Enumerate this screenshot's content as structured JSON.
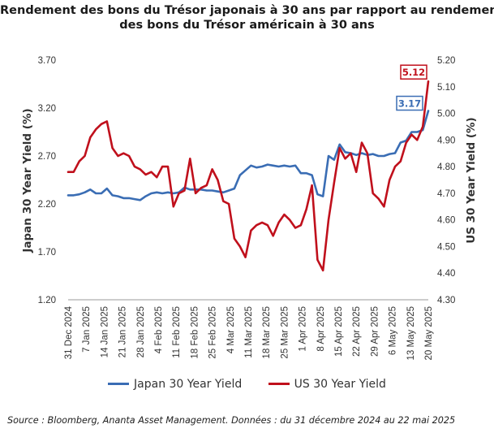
{
  "title_line1": "Rendement des bons du Trésor japonais à 30 ans par rapport au rendement",
  "title_line2": "des bons du Trésor américain à 30 ans",
  "source": "Source : Bloomberg, Ananta Asset Management. Données : du 31 décembre 2024 au 22 mai 2025",
  "colors": {
    "japan": "#3a6db4",
    "us": "#c0101c",
    "axis": "#999999"
  },
  "chart_data": {
    "type": "line",
    "x_categories": [
      "31 Dec 2024",
      "7 Jan 2025",
      "14 Jan 2025",
      "21 Jan 2025",
      "28 Jan 2025",
      "4 Feb 2025",
      "11 Feb 2025",
      "18 Feb 2025",
      "25 Feb 2025",
      "4 Mar 2025",
      "11 Mar 2025",
      "18 Mar 2025",
      "25 Mar 2025",
      "1 Apr 2025",
      "8 Apr 2025",
      "15 Apr 2025",
      "22 Apr 2025",
      "29 Apr 2025",
      "6 May 2025",
      "13 May 2025",
      "20 May 2025"
    ],
    "left_axis": {
      "label": "Japan 30 Year Yield (%)",
      "ticks": [
        "3.70",
        "3.20",
        "2.70",
        "2.20",
        "1.70",
        "1.20"
      ],
      "range": [
        1.2,
        3.7
      ]
    },
    "right_axis": {
      "label": "US 30 Year Yield (%)",
      "ticks": [
        "5.20",
        "5.10",
        "5.00",
        "4.90",
        "4.80",
        "4.70",
        "4.60",
        "4.50",
        "4.40",
        "4.30"
      ],
      "range": [
        4.3,
        5.2
      ]
    },
    "series": [
      {
        "name": "Japan 30 Year Yield",
        "axis": "left",
        "end_label": "3.17",
        "points": [
          [
            0,
            2.29
          ],
          [
            1,
            2.29
          ],
          [
            2,
            2.3
          ],
          [
            3,
            2.32
          ],
          [
            4,
            2.35
          ],
          [
            5,
            2.31
          ],
          [
            6,
            2.31
          ],
          [
            7,
            2.36
          ],
          [
            8,
            2.29
          ],
          [
            9,
            2.28
          ],
          [
            10,
            2.26
          ],
          [
            11,
            2.26
          ],
          [
            12,
            2.25
          ],
          [
            13,
            2.24
          ],
          [
            14,
            2.28
          ],
          [
            15,
            2.31
          ],
          [
            16,
            2.32
          ],
          [
            17,
            2.31
          ],
          [
            18,
            2.32
          ],
          [
            19,
            2.31
          ],
          [
            20,
            2.32
          ],
          [
            21,
            2.37
          ],
          [
            22,
            2.35
          ],
          [
            23,
            2.35
          ],
          [
            24,
            2.35
          ],
          [
            25,
            2.34
          ],
          [
            26,
            2.34
          ],
          [
            27,
            2.33
          ],
          [
            28,
            2.32
          ],
          [
            29,
            2.34
          ],
          [
            30,
            2.36
          ],
          [
            31,
            2.5
          ],
          [
            32,
            2.55
          ],
          [
            33,
            2.6
          ],
          [
            34,
            2.58
          ],
          [
            35,
            2.59
          ],
          [
            36,
            2.61
          ],
          [
            37,
            2.6
          ],
          [
            38,
            2.59
          ],
          [
            39,
            2.6
          ],
          [
            40,
            2.59
          ],
          [
            41,
            2.6
          ],
          [
            42,
            2.52
          ],
          [
            43,
            2.52
          ],
          [
            44,
            2.5
          ],
          [
            45,
            2.3
          ],
          [
            46,
            2.28
          ],
          [
            47,
            2.7
          ],
          [
            48,
            2.66
          ],
          [
            49,
            2.82
          ],
          [
            50,
            2.74
          ],
          [
            51,
            2.73
          ],
          [
            52,
            2.71
          ],
          [
            53,
            2.73
          ],
          [
            54,
            2.71
          ],
          [
            55,
            2.72
          ],
          [
            56,
            2.7
          ],
          [
            57,
            2.7
          ],
          [
            58,
            2.72
          ],
          [
            59,
            2.73
          ],
          [
            60,
            2.84
          ],
          [
            61,
            2.86
          ],
          [
            62,
            2.95
          ],
          [
            63,
            2.95
          ],
          [
            64,
            2.97
          ],
          [
            65,
            3.17
          ]
        ]
      },
      {
        "name": "US 30 Year Yield",
        "axis": "right",
        "end_label": "5.12",
        "points": [
          [
            0,
            4.78
          ],
          [
            1,
            4.78
          ],
          [
            2,
            4.82
          ],
          [
            3,
            4.84
          ],
          [
            4,
            4.91
          ],
          [
            5,
            4.94
          ],
          [
            6,
            4.96
          ],
          [
            7,
            4.97
          ],
          [
            8,
            4.87
          ],
          [
            9,
            4.84
          ],
          [
            10,
            4.85
          ],
          [
            11,
            4.84
          ],
          [
            12,
            4.8
          ],
          [
            13,
            4.79
          ],
          [
            14,
            4.77
          ],
          [
            15,
            4.78
          ],
          [
            16,
            4.76
          ],
          [
            17,
            4.8
          ],
          [
            18,
            4.8
          ],
          [
            19,
            4.65
          ],
          [
            20,
            4.7
          ],
          [
            21,
            4.71
          ],
          [
            22,
            4.83
          ],
          [
            23,
            4.7
          ],
          [
            24,
            4.72
          ],
          [
            25,
            4.73
          ],
          [
            26,
            4.79
          ],
          [
            27,
            4.75
          ],
          [
            28,
            4.67
          ],
          [
            29,
            4.66
          ],
          [
            30,
            4.53
          ],
          [
            31,
            4.5
          ],
          [
            32,
            4.46
          ],
          [
            33,
            4.56
          ],
          [
            34,
            4.58
          ],
          [
            35,
            4.59
          ],
          [
            36,
            4.58
          ],
          [
            37,
            4.54
          ],
          [
            38,
            4.59
          ],
          [
            39,
            4.62
          ],
          [
            40,
            4.6
          ],
          [
            41,
            4.57
          ],
          [
            42,
            4.58
          ],
          [
            43,
            4.64
          ],
          [
            44,
            4.73
          ],
          [
            45,
            4.45
          ],
          [
            46,
            4.41
          ],
          [
            47,
            4.6
          ],
          [
            48,
            4.74
          ],
          [
            49,
            4.87
          ],
          [
            50,
            4.83
          ],
          [
            51,
            4.85
          ],
          [
            52,
            4.78
          ],
          [
            53,
            4.89
          ],
          [
            54,
            4.85
          ],
          [
            55,
            4.7
          ],
          [
            56,
            4.68
          ],
          [
            57,
            4.65
          ],
          [
            58,
            4.75
          ],
          [
            59,
            4.8
          ],
          [
            60,
            4.82
          ],
          [
            61,
            4.89
          ],
          [
            62,
            4.92
          ],
          [
            63,
            4.9
          ],
          [
            64,
            4.95
          ],
          [
            65,
            5.12
          ]
        ]
      }
    ]
  }
}
